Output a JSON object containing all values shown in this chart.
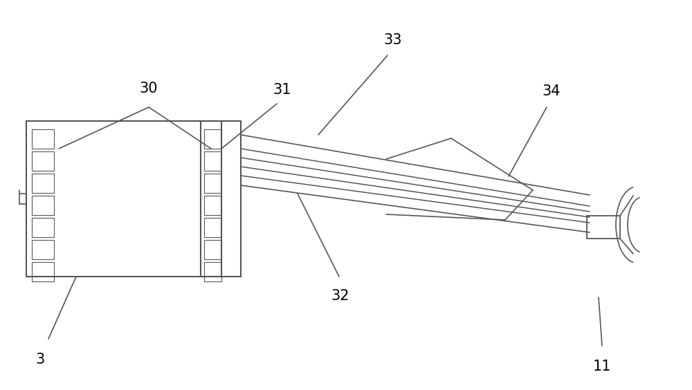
{
  "bg_color": "#ffffff",
  "line_color": "#555555",
  "lw": 1.2,
  "label_fontsize": 15,
  "fig_w": 10.0,
  "fig_h": 5.64,
  "dpi": 100
}
